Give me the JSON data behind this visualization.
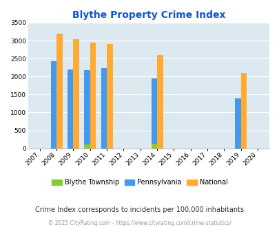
{
  "title": "Blythe Property Crime Index",
  "title_color": "#1155cc",
  "subtitle": "Crime Index corresponds to incidents per 100,000 inhabitants",
  "footer": "© 2025 CityRating.com - https://www.cityrating.com/crime-statistics/",
  "years": [
    2007,
    2008,
    2009,
    2010,
    2011,
    2012,
    2013,
    2014,
    2015,
    2016,
    2017,
    2018,
    2019,
    2020
  ],
  "blythe": [
    0,
    0,
    0,
    110,
    0,
    0,
    0,
    120,
    0,
    0,
    0,
    0,
    0,
    0
  ],
  "pennsylvania": [
    0,
    2420,
    2200,
    2175,
    2230,
    0,
    0,
    1940,
    0,
    0,
    0,
    0,
    1390,
    0
  ],
  "national": [
    0,
    3200,
    3040,
    2950,
    2900,
    0,
    0,
    2590,
    0,
    0,
    0,
    0,
    2110,
    0
  ],
  "bar_width": 0.35,
  "blythe_color": "#88cc33",
  "pa_color": "#4499ee",
  "national_color": "#ffaa33",
  "bg_color": "#dce9f0",
  "ylim": [
    0,
    3500
  ],
  "yticks": [
    0,
    500,
    1000,
    1500,
    2000,
    2500,
    3000,
    3500
  ],
  "legend_labels": [
    "Blythe Township",
    "Pennsylvania",
    "National"
  ],
  "grid_color": "#b0c8d8"
}
